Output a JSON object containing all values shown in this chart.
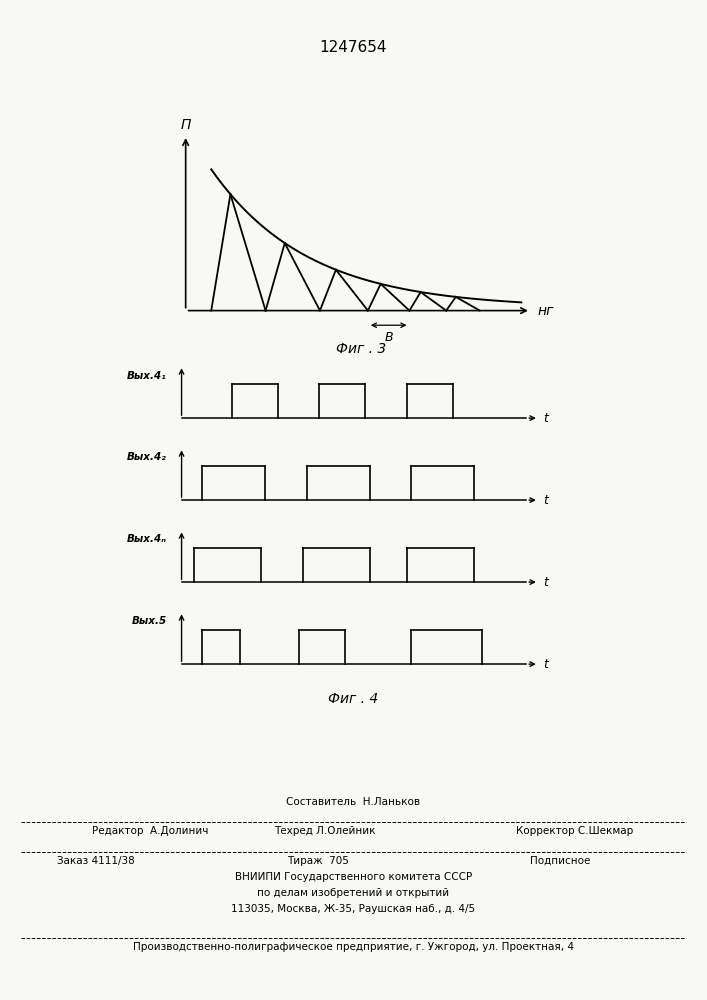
{
  "title_patent": "1247654",
  "fig3_label": "Фиг . 3",
  "fig4_label": "Фиг . 4",
  "fig3_xlabel": "нг",
  "fig3_ylabel": "П",
  "fig3_B_label": "В",
  "t_label": "t",
  "waveform_labels": [
    "Вых.4₁",
    "Вых.4₂",
    "Вых.4ₙ",
    "Вых.5"
  ],
  "footer_line1": "Составитель  Н.Ланьков",
  "footer_line2a": "Редактор  А.Долинич",
  "footer_line2b": "Техред Л.Олейник",
  "footer_line2c": "Корректор С.Шекмар",
  "footer_line3a": "Заказ 4111/38",
  "footer_line3b": "Тираж  705",
  "footer_line3c": "Подписное",
  "footer_line4": "ВНИИПИ Государственного комитета СССР",
  "footer_line5": "по делам изобретений и открытий",
  "footer_line6": "113035, Москва, Ж-35, Раушская наб., д. 4/5",
  "footer_line7": "Производственно-полиграфическое предприятие, г. Ужгород, ул. Проектная, 4",
  "bg_color": "#f8f8f4",
  "line_color": "#000000"
}
